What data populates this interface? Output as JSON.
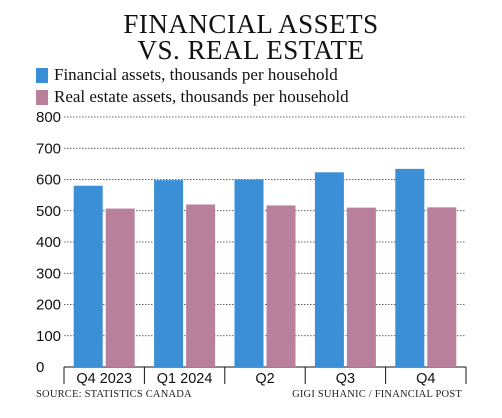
{
  "chart_data": {
    "type": "bar",
    "title_line1": "FINANCIAL ASSETS",
    "title_line2": "VS. REAL ESTATE",
    "categories": [
      "Q4 2023",
      "Q1 2024",
      "Q2",
      "Q3",
      "Q4"
    ],
    "series": [
      {
        "name": "Financial assets, thousands per household",
        "color": "#3a8fd6",
        "values": [
          580,
          598,
          600,
          623,
          634
        ]
      },
      {
        "name": "Real estate assets, thousands per household",
        "color": "#b9809c",
        "values": [
          507,
          520,
          517,
          510,
          511
        ]
      }
    ],
    "ylim": [
      0,
      800
    ],
    "yticks": [
      "800",
      "700",
      "600",
      "500",
      "400",
      "300",
      "200",
      "100",
      "0"
    ],
    "grid": true,
    "legend_position": "top-left"
  },
  "footer": {
    "source": "SOURCE: STATISTICS CANADA",
    "credit": "GIGI SUHANIC / FINANCIAL POST"
  }
}
